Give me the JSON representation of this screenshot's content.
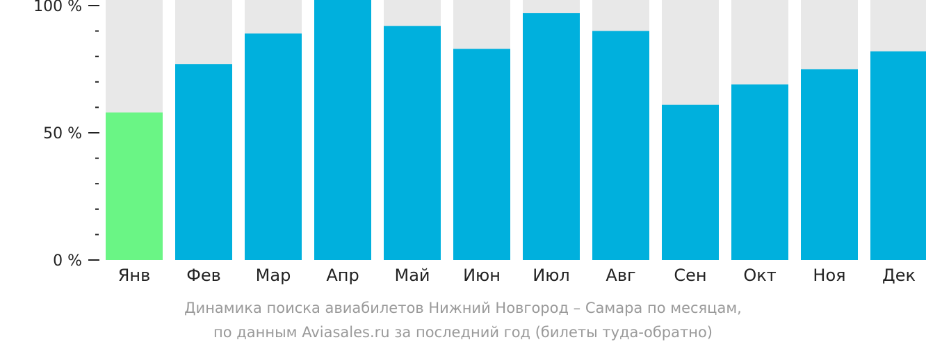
{
  "chart_data": {
    "type": "bar",
    "categories": [
      "Янв",
      "Фев",
      "Мар",
      "Апр",
      "Май",
      "Июн",
      "Июл",
      "Авг",
      "Сен",
      "Окт",
      "Ноя",
      "Дек"
    ],
    "values": [
      58,
      77,
      89,
      106,
      92,
      83,
      97,
      90,
      61,
      69,
      75,
      82
    ],
    "ylim": [
      0,
      100
    ],
    "yticks": [
      {
        "value": 100,
        "label": "100 %"
      },
      {
        "value": 50,
        "label": "50 %"
      },
      {
        "value": 0,
        "label": "0 %"
      }
    ],
    "minor_tick_step": 10,
    "grid": false,
    "colors": {
      "bar": "#00b0dd",
      "highlight_bar": "#6af585",
      "background_bar": "#e8e8e8",
      "axis": "#222222"
    },
    "highlight_index": 0,
    "caption_lines": [
      "Динамика поиска авиабилетов Нижний Новгород – Самара по месяцам,",
      "по данным Aviasales.ru за последний год (билеты туда-обратно)"
    ]
  }
}
